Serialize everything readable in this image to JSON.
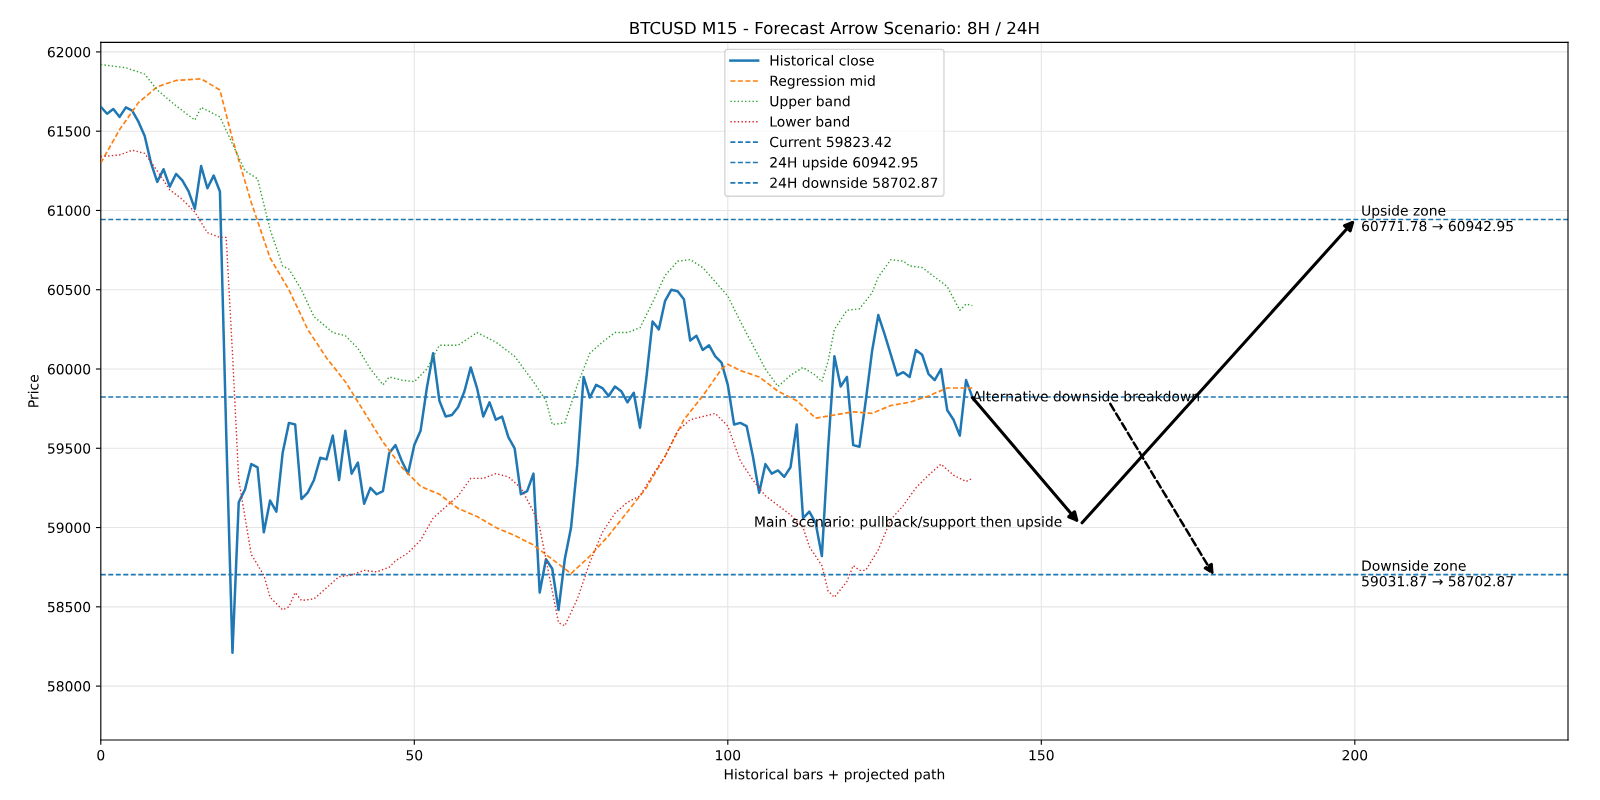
{
  "chart_data": {
    "type": "line",
    "title": "BTCUSD M15 - Forecast Arrow Scenario: 8H / 24H",
    "xlabel": "Historical bars + projected path",
    "ylabel": "Price",
    "xlim": [
      0,
      234
    ],
    "xticks": [
      0,
      50,
      100,
      150,
      200
    ],
    "ylim": [
      57660,
      62060
    ],
    "yticks": [
      58000,
      58500,
      59000,
      59500,
      60000,
      60500,
      61000,
      61500,
      62000
    ],
    "grid": true,
    "legend": "top",
    "series": [
      {
        "name": "Historical close",
        "color": "#1f77b4",
        "line_style": "solid",
        "x": [
          0,
          1,
          2,
          3,
          4,
          5,
          6,
          7,
          8,
          9,
          10,
          11,
          12,
          13,
          14,
          15,
          16,
          17,
          18,
          19,
          20,
          21,
          22,
          23,
          24,
          25,
          26,
          27,
          28,
          29,
          30,
          31,
          32,
          33,
          34,
          35,
          36,
          37,
          38,
          39,
          40,
          41,
          42,
          43,
          44,
          45,
          46,
          47,
          48,
          49,
          50,
          51,
          52,
          53,
          54,
          55,
          56,
          57,
          58,
          59,
          60,
          61,
          62,
          63,
          64,
          65,
          66,
          67,
          68,
          69,
          70,
          71,
          72,
          73,
          74,
          75,
          76,
          77,
          78,
          79,
          80,
          81,
          82,
          83,
          84,
          85,
          86,
          87,
          88,
          89,
          90,
          91,
          92,
          93,
          94,
          95,
          96,
          97,
          98,
          99,
          100,
          101,
          102,
          103,
          104,
          105,
          106,
          107,
          108,
          109,
          110,
          111,
          112,
          113,
          114,
          115,
          116,
          117,
          118,
          119,
          120,
          121,
          122,
          123,
          124,
          125,
          126,
          127,
          128,
          129,
          130,
          131,
          132,
          133,
          134,
          135,
          136,
          137,
          138,
          139
        ],
        "values": [
          61654,
          61610,
          61640,
          61590,
          61650,
          61630,
          61560,
          61470,
          61300,
          61180,
          61260,
          61150,
          61230,
          61190,
          61120,
          61010,
          61280,
          61140,
          61220,
          61120,
          59600,
          58210,
          59160,
          59240,
          59400,
          59380,
          58970,
          59170,
          59100,
          59470,
          59660,
          59650,
          59180,
          59220,
          59300,
          59440,
          59430,
          59580,
          59300,
          59610,
          59340,
          59410,
          59150,
          59250,
          59210,
          59230,
          59470,
          59520,
          59420,
          59340,
          59520,
          59610,
          59880,
          60100,
          59800,
          59700,
          59710,
          59760,
          59860,
          60010,
          59880,
          59700,
          59790,
          59680,
          59700,
          59570,
          59500,
          59210,
          59230,
          59340,
          58590,
          58800,
          58740,
          58480,
          58800,
          59000,
          59400,
          59950,
          59820,
          59900,
          59880,
          59830,
          59890,
          59860,
          59790,
          59850,
          59630,
          59940,
          60300,
          60250,
          60430,
          60500,
          60490,
          60440,
          60180,
          60210,
          60120,
          60150,
          60080,
          60040,
          59900,
          59650,
          59660,
          59640,
          59450,
          59220,
          59400,
          59340,
          59360,
          59320,
          59380,
          59650,
          59060,
          59100,
          59030,
          58820,
          59500,
          60080,
          59890,
          59950,
          59520,
          59510,
          59800,
          60110,
          60340,
          60220,
          60090,
          59960,
          59980,
          59950,
          60120,
          60090,
          59970,
          59930,
          60000,
          59740,
          59680,
          59580,
          59930,
          59823
        ]
      },
      {
        "name": "Regression mid",
        "color": "#ff7f0e",
        "line_style": "dashed",
        "x": [
          0,
          3,
          6,
          9,
          12,
          16,
          19,
          21,
          24,
          27,
          30,
          33,
          36,
          39,
          42,
          45,
          48,
          51,
          54,
          57,
          60,
          63,
          66,
          69,
          72,
          75,
          78,
          81,
          84,
          87,
          90,
          93,
          96,
          99,
          100,
          102,
          105,
          108,
          111,
          114,
          117,
          120,
          123,
          126,
          129,
          132,
          135,
          137,
          139
        ],
        "values": [
          61300,
          61510,
          61680,
          61780,
          61820,
          61830,
          61760,
          61450,
          61050,
          60700,
          60500,
          60250,
          60070,
          59920,
          59730,
          59540,
          59380,
          59260,
          59210,
          59120,
          59070,
          59000,
          58950,
          58890,
          58800,
          58710,
          58820,
          58950,
          59100,
          59250,
          59450,
          59680,
          59830,
          60000,
          60030,
          59990,
          59950,
          59860,
          59800,
          59690,
          59710,
          59730,
          59720,
          59770,
          59790,
          59830,
          59880,
          59880,
          59880
        ]
      },
      {
        "name": "Upper band",
        "color": "#2ca02c",
        "line_style": "dotted",
        "x": [
          0,
          4,
          7,
          9,
          12,
          15,
          16,
          19,
          21,
          23,
          25,
          27,
          29,
          30,
          32,
          34,
          37,
          39,
          41,
          43,
          45,
          46,
          48,
          50,
          52,
          54,
          57,
          60,
          63,
          66,
          69,
          71,
          72,
          74,
          76,
          78,
          80,
          82,
          84,
          86,
          88,
          90,
          92,
          94,
          96,
          98,
          100,
          102,
          104,
          106,
          108,
          110,
          112,
          114,
          115,
          116,
          117,
          119,
          121,
          123,
          124,
          126,
          128,
          129,
          131,
          133,
          135,
          137,
          138,
          139
        ],
        "values": [
          61920,
          61900,
          61860,
          61760,
          61660,
          61570,
          61650,
          61590,
          61420,
          61250,
          61200,
          60880,
          60650,
          60630,
          60500,
          60330,
          60230,
          60210,
          60130,
          60000,
          59900,
          59950,
          59930,
          59920,
          60000,
          60150,
          60150,
          60230,
          60170,
          60080,
          59920,
          59800,
          59650,
          59660,
          59900,
          60100,
          60170,
          60230,
          60230,
          60260,
          60420,
          60590,
          60680,
          60690,
          60640,
          60550,
          60460,
          60300,
          60150,
          60000,
          59890,
          59960,
          60010,
          59960,
          59920,
          60050,
          60250,
          60370,
          60380,
          60480,
          60580,
          60690,
          60680,
          60650,
          60640,
          60580,
          60520,
          60370,
          60410,
          60400
        ]
      },
      {
        "name": "Lower band",
        "color": "#d62728",
        "line_style": "dotted",
        "x": [
          0,
          3,
          5,
          7,
          9,
          11,
          13,
          15,
          17,
          19,
          20,
          21,
          22,
          24,
          26,
          27,
          29,
          30,
          31,
          32,
          34,
          36,
          38,
          40,
          42,
          44,
          46,
          47,
          49,
          51,
          53,
          55,
          57,
          59,
          61,
          63,
          65,
          67,
          69,
          70,
          71,
          72,
          73,
          74,
          76,
          78,
          80,
          82,
          84,
          86,
          88,
          90,
          92,
          94,
          96,
          98,
          100,
          102,
          104,
          106,
          108,
          110,
          112,
          113,
          115,
          116,
          117,
          119,
          120,
          121,
          122,
          124,
          126,
          128,
          130,
          132,
          134,
          136,
          138,
          139
        ],
        "values": [
          61340,
          61350,
          61380,
          61360,
          61250,
          61130,
          61070,
          60990,
          60860,
          60830,
          60830,
          60100,
          59300,
          58830,
          58700,
          58560,
          58480,
          58500,
          58590,
          58540,
          58550,
          58620,
          58690,
          58700,
          58730,
          58720,
          58750,
          58790,
          58840,
          58920,
          59060,
          59130,
          59200,
          59310,
          59310,
          59340,
          59320,
          59250,
          59100,
          59000,
          58800,
          58600,
          58400,
          58380,
          58550,
          58780,
          58970,
          59090,
          59160,
          59200,
          59330,
          59450,
          59610,
          59680,
          59700,
          59720,
          59640,
          59420,
          59300,
          59200,
          59140,
          59080,
          59000,
          58880,
          58760,
          58600,
          58560,
          58660,
          58760,
          58730,
          58730,
          58860,
          59050,
          59140,
          59250,
          59330,
          59400,
          59330,
          59290,
          59310
        ]
      },
      {
        "type": "line",
        "color": "#000000",
        "line_style": "solid",
        "x": [
          139,
          156
        ],
        "values": [
          59820,
          59030
        ]
      },
      {
        "type": "line",
        "color": "#000000",
        "line_style": "solid",
        "x": [
          156.5,
          200
        ],
        "values": [
          59030,
          60940
        ]
      },
      {
        "type": "line",
        "color": "#000000",
        "line_style": "dashed",
        "x": [
          161,
          177.5
        ],
        "values": [
          59780,
          58700
        ]
      }
    ],
    "ref_lines": [
      {
        "axis": "y",
        "value": 59823.42,
        "label": "Current 59823.42",
        "color": "#1f77b4",
        "line_style": "dashed"
      },
      {
        "axis": "y",
        "value": 60942.95,
        "label": "24H upside 60942.95",
        "color": "#1f77b4",
        "line_style": "dashed"
      },
      {
        "axis": "y",
        "value": 58702.87,
        "label": "24H downside 58702.87",
        "color": "#1f77b4",
        "line_style": "dashed"
      }
    ],
    "annotations": [
      {
        "text": "Main scenario: pullback/support then upside",
        "x": 156,
        "y": 59030
      },
      {
        "text": "Alternative downside breakdown",
        "x": 139,
        "y": 59820
      },
      {
        "text": "Upside zone\n60771.78 → 60942.95",
        "x": 201,
        "y": 60942.95
      },
      {
        "text": "Downside zone\n59031.87 → 58702.87",
        "x": 201,
        "y": 58702.87
      }
    ]
  }
}
